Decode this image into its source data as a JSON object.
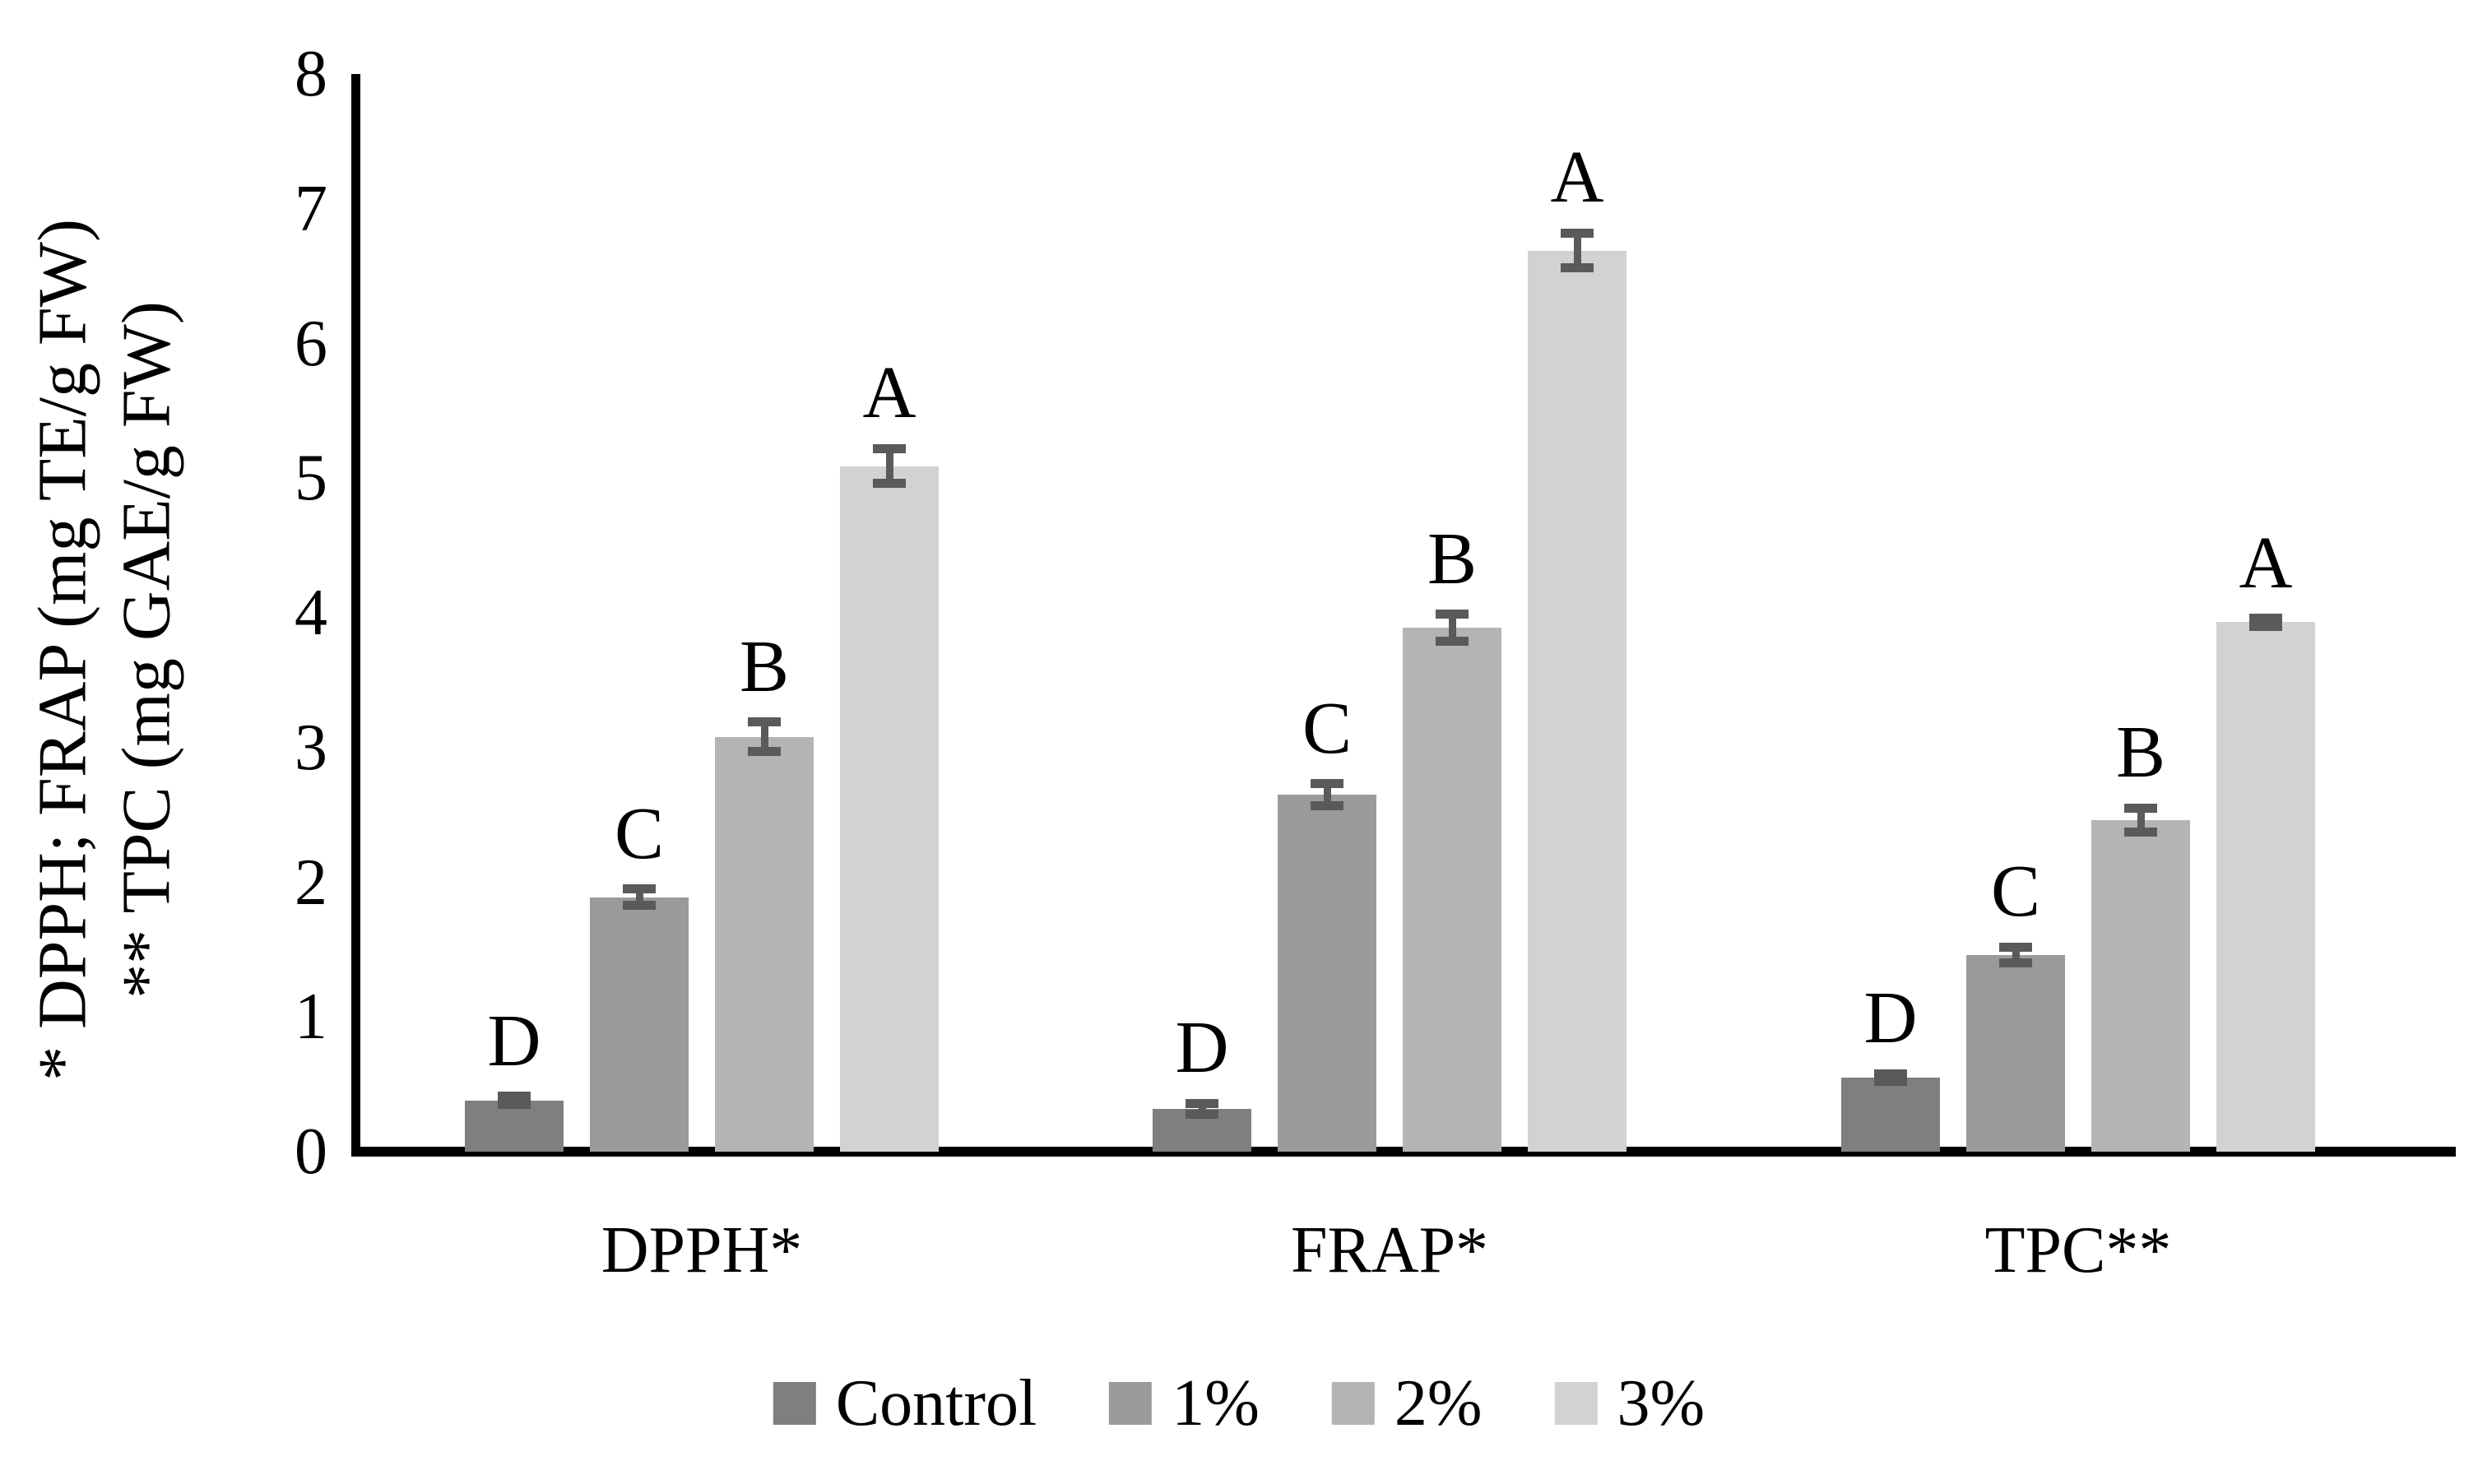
{
  "chart_data": {
    "type": "bar",
    "title": "",
    "categories": [
      "DPPH*",
      "FRAP*",
      "TPC**"
    ],
    "series": [
      {
        "name": "Control",
        "color": "#7f7f7f",
        "letter": "D",
        "values": [
          0.38,
          0.32,
          0.55
        ],
        "errors": [
          0.03,
          0.04,
          0.03
        ]
      },
      {
        "name": "1%",
        "color": "#9a9a9a",
        "letter": "C",
        "values": [
          1.89,
          2.65,
          1.46
        ],
        "errors": [
          0.06,
          0.08,
          0.06
        ]
      },
      {
        "name": "2%",
        "color": "#b4b4b4",
        "letter": "B",
        "values": [
          3.08,
          3.89,
          2.46
        ],
        "errors": [
          0.11,
          0.1,
          0.09
        ]
      },
      {
        "name": "3%",
        "color": "#d2d2d2",
        "letter": "A",
        "values": [
          5.09,
          6.69,
          3.93
        ],
        "errors": [
          0.13,
          0.13,
          0.03
        ]
      }
    ],
    "ylabel_line1": "* DPPH; FRAP (mg TE/g FW)",
    "ylabel_line2": "** TPC (mg GAE/g FW)",
    "yticks": [
      "0",
      "1",
      "2",
      "3",
      "4",
      "5",
      "6",
      "7",
      "8"
    ],
    "ylim": [
      0,
      8
    ],
    "grid": false,
    "legend_position": "bottom",
    "error_bar_color": "#5a5a5a",
    "axis_color": "#000000",
    "background_color": "#ffffff"
  }
}
